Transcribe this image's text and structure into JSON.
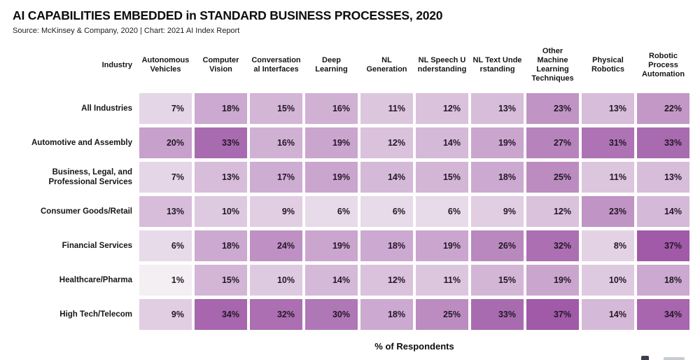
{
  "header": {
    "title": "AI CAPABILITIES EMBEDDED in STANDARD BUSINESS PROCESSES, 2020",
    "source_line": "Source: McKinsey & Company, 2020 | Chart: 2021 AI Index Report"
  },
  "chart_data": {
    "type": "heatmap",
    "title": "AI CAPABILITIES EMBEDDED in STANDARD BUSINESS PROCESSES, 2020",
    "row_header_label": "Industry",
    "columns": [
      "Autonomous Vehicles",
      "Computer Vision",
      "Conversation al Interfaces",
      "Deep Learning",
      "NL Generation",
      "NL Speech U nderstanding",
      "NL Text Unde rstanding",
      "Other Machine Learning Techniques",
      "Physical Robotics",
      "Robotic Process Automation"
    ],
    "rows": [
      "All Industries",
      "Automotive and Assembly",
      "Business, Legal, and Professional Services",
      "Consumer Goods/Retail",
      "Financial Services",
      "Healthcare/Pharma",
      "High Tech/Telecom"
    ],
    "values": [
      [
        7,
        18,
        15,
        16,
        11,
        12,
        13,
        23,
        13,
        22
      ],
      [
        20,
        33,
        16,
        19,
        12,
        14,
        19,
        27,
        31,
        33
      ],
      [
        7,
        13,
        17,
        19,
        14,
        15,
        18,
        25,
        11,
        13
      ],
      [
        13,
        10,
        9,
        6,
        6,
        6,
        9,
        12,
        23,
        14
      ],
      [
        6,
        18,
        24,
        19,
        18,
        19,
        26,
        32,
        8,
        37
      ],
      [
        1,
        15,
        10,
        14,
        12,
        11,
        15,
        19,
        10,
        18
      ],
      [
        9,
        34,
        32,
        30,
        18,
        25,
        33,
        37,
        14,
        34
      ]
    ],
    "unit": "%",
    "value_suffix": "%",
    "xlabel": "% of Respondents",
    "legend_position": "none",
    "color_scale": {
      "min_value": 1,
      "max_value": 37,
      "low": "#f3eff3",
      "high": "#a05aa8",
      "value_text_color": "#231726",
      "gap_color": "#ffffff"
    }
  }
}
